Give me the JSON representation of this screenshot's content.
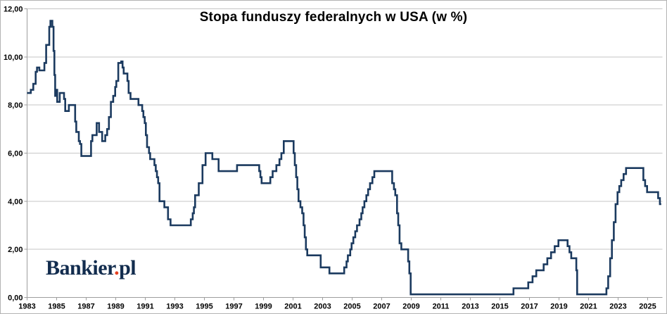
{
  "chart_data": {
    "type": "line",
    "title": "Stopa funduszy federalnych w USA (w %)",
    "xlabel": "",
    "ylabel": "",
    "xlim": [
      1983,
      2026
    ],
    "ylim": [
      0,
      12
    ],
    "grid": "horizontal",
    "legend": "none",
    "x_ticks": [
      1983,
      1985,
      1987,
      1989,
      1991,
      1993,
      1995,
      1997,
      1999,
      2001,
      2003,
      2005,
      2007,
      2009,
      2011,
      2013,
      2015,
      2017,
      2019,
      2021,
      2023,
      2025
    ],
    "x_tick_labels": [
      "1983",
      "1985",
      "1987",
      "1989",
      "1991",
      "1993",
      "1995",
      "1997",
      "1999",
      "2001",
      "2003",
      "2005",
      "2007",
      "2009",
      "2011",
      "2013",
      "2015",
      "2017",
      "2019",
      "2021",
      "2023",
      "2025"
    ],
    "y_ticks": [
      0,
      2,
      4,
      6,
      8,
      10,
      12
    ],
    "y_tick_labels": [
      "0,00",
      "2,00",
      "4,00",
      "6,00",
      "8,00",
      "10,00",
      "12,00"
    ],
    "colors": {
      "line": "#1b3a5f",
      "grid": "#c6c6c6",
      "axis": "#9d9d9d",
      "text": "#000000"
    },
    "series": [
      {
        "name": "Stopa funduszy federalnych (w %)",
        "step": "after",
        "end_x": 2025.92,
        "points": [
          [
            1983.0,
            8.5
          ],
          [
            1983.25,
            8.63
          ],
          [
            1983.42,
            8.88
          ],
          [
            1983.58,
            9.38
          ],
          [
            1983.67,
            9.56
          ],
          [
            1983.83,
            9.44
          ],
          [
            1984.17,
            9.75
          ],
          [
            1984.29,
            10.5
          ],
          [
            1984.5,
            11.25
          ],
          [
            1984.58,
            11.5
          ],
          [
            1984.71,
            11.25
          ],
          [
            1984.79,
            10.25
          ],
          [
            1984.85,
            9.25
          ],
          [
            1984.9,
            8.38
          ],
          [
            1984.96,
            8.63
          ],
          [
            1985.04,
            8.13
          ],
          [
            1985.21,
            8.5
          ],
          [
            1985.5,
            8.25
          ],
          [
            1985.58,
            7.75
          ],
          [
            1985.83,
            8.0
          ],
          [
            1986.25,
            7.31
          ],
          [
            1986.33,
            6.88
          ],
          [
            1986.5,
            6.5
          ],
          [
            1986.58,
            6.38
          ],
          [
            1986.67,
            5.88
          ],
          [
            1987.33,
            6.5
          ],
          [
            1987.42,
            6.75
          ],
          [
            1987.71,
            7.25
          ],
          [
            1987.87,
            6.88
          ],
          [
            1988.08,
            6.5
          ],
          [
            1988.29,
            6.75
          ],
          [
            1988.42,
            7.0
          ],
          [
            1988.54,
            7.5
          ],
          [
            1988.67,
            8.13
          ],
          [
            1988.83,
            8.38
          ],
          [
            1988.96,
            8.75
          ],
          [
            1989.04,
            9.0
          ],
          [
            1989.17,
            9.75
          ],
          [
            1989.37,
            9.81
          ],
          [
            1989.46,
            9.56
          ],
          [
            1989.54,
            9.31
          ],
          [
            1989.79,
            9.0
          ],
          [
            1989.87,
            8.5
          ],
          [
            1990.0,
            8.25
          ],
          [
            1990.54,
            8.0
          ],
          [
            1990.79,
            7.75
          ],
          [
            1990.87,
            7.5
          ],
          [
            1990.96,
            7.25
          ],
          [
            1991.04,
            6.75
          ],
          [
            1991.12,
            6.25
          ],
          [
            1991.25,
            6.0
          ],
          [
            1991.33,
            5.75
          ],
          [
            1991.62,
            5.5
          ],
          [
            1991.71,
            5.25
          ],
          [
            1991.79,
            5.0
          ],
          [
            1991.87,
            4.75
          ],
          [
            1991.96,
            4.0
          ],
          [
            1992.29,
            3.75
          ],
          [
            1992.54,
            3.25
          ],
          [
            1992.71,
            3.0
          ],
          [
            1994.08,
            3.25
          ],
          [
            1994.21,
            3.5
          ],
          [
            1994.29,
            3.75
          ],
          [
            1994.37,
            4.25
          ],
          [
            1994.62,
            4.75
          ],
          [
            1994.87,
            5.5
          ],
          [
            1995.08,
            6.0
          ],
          [
            1995.54,
            5.75
          ],
          [
            1995.96,
            5.25
          ],
          [
            1997.21,
            5.5
          ],
          [
            1998.71,
            5.25
          ],
          [
            1998.79,
            5.0
          ],
          [
            1998.87,
            4.75
          ],
          [
            1999.46,
            5.0
          ],
          [
            1999.62,
            5.25
          ],
          [
            1999.87,
            5.5
          ],
          [
            2000.08,
            5.75
          ],
          [
            2000.21,
            6.0
          ],
          [
            2000.37,
            6.5
          ],
          [
            2001.04,
            6.0
          ],
          [
            2001.12,
            5.5
          ],
          [
            2001.21,
            5.0
          ],
          [
            2001.29,
            4.5
          ],
          [
            2001.37,
            4.0
          ],
          [
            2001.5,
            3.75
          ],
          [
            2001.62,
            3.5
          ],
          [
            2001.71,
            3.0
          ],
          [
            2001.79,
            2.5
          ],
          [
            2001.87,
            2.0
          ],
          [
            2001.96,
            1.75
          ],
          [
            2002.87,
            1.25
          ],
          [
            2003.46,
            1.0
          ],
          [
            2004.46,
            1.25
          ],
          [
            2004.62,
            1.5
          ],
          [
            2004.71,
            1.75
          ],
          [
            2004.87,
            2.0
          ],
          [
            2004.96,
            2.25
          ],
          [
            2005.08,
            2.5
          ],
          [
            2005.21,
            2.75
          ],
          [
            2005.33,
            3.0
          ],
          [
            2005.5,
            3.25
          ],
          [
            2005.62,
            3.5
          ],
          [
            2005.71,
            3.75
          ],
          [
            2005.83,
            4.0
          ],
          [
            2005.96,
            4.25
          ],
          [
            2006.08,
            4.5
          ],
          [
            2006.21,
            4.75
          ],
          [
            2006.37,
            5.0
          ],
          [
            2006.5,
            5.25
          ],
          [
            2007.71,
            4.75
          ],
          [
            2007.83,
            4.5
          ],
          [
            2007.92,
            4.25
          ],
          [
            2008.04,
            3.5
          ],
          [
            2008.12,
            3.0
          ],
          [
            2008.21,
            2.25
          ],
          [
            2008.33,
            2.0
          ],
          [
            2008.79,
            1.5
          ],
          [
            2008.87,
            1.0
          ],
          [
            2008.96,
            0.13
          ],
          [
            2015.92,
            0.38
          ],
          [
            2016.92,
            0.63
          ],
          [
            2017.21,
            0.88
          ],
          [
            2017.46,
            1.13
          ],
          [
            2017.96,
            1.38
          ],
          [
            2018.21,
            1.63
          ],
          [
            2018.46,
            1.88
          ],
          [
            2018.71,
            2.13
          ],
          [
            2018.96,
            2.38
          ],
          [
            2019.58,
            2.13
          ],
          [
            2019.71,
            1.88
          ],
          [
            2019.83,
            1.63
          ],
          [
            2020.17,
            1.13
          ],
          [
            2020.23,
            0.13
          ],
          [
            2022.21,
            0.38
          ],
          [
            2022.33,
            0.88
          ],
          [
            2022.46,
            1.63
          ],
          [
            2022.58,
            2.38
          ],
          [
            2022.71,
            3.13
          ],
          [
            2022.83,
            3.88
          ],
          [
            2022.96,
            4.38
          ],
          [
            2023.08,
            4.63
          ],
          [
            2023.21,
            4.88
          ],
          [
            2023.37,
            5.13
          ],
          [
            2023.54,
            5.38
          ],
          [
            2024.71,
            4.88
          ],
          [
            2024.83,
            4.63
          ],
          [
            2024.96,
            4.38
          ],
          [
            2025.71,
            4.13
          ],
          [
            2025.83,
            3.88
          ]
        ]
      }
    ]
  },
  "logo": {
    "text_main": "Bankier",
    "dot": ".",
    "text_suffix": "pl",
    "main_color": "#122c4e",
    "dot_color": "#e63f1f"
  }
}
